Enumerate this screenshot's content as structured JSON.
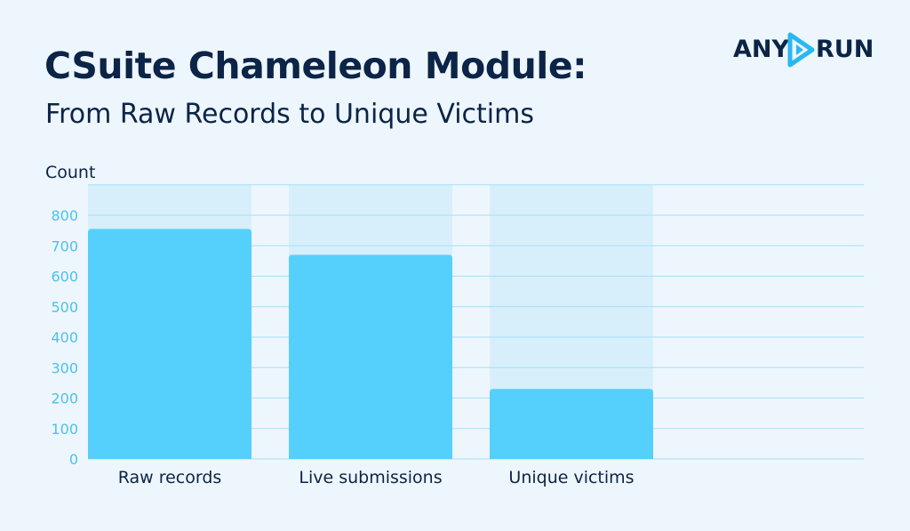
{
  "header": {
    "title": "CSuite Chameleon Module:",
    "subtitle": "From Raw Records to Unique Victims"
  },
  "logo": {
    "left_text": "ANY",
    "right_text": "RUN",
    "icon": "play-icon"
  },
  "colors": {
    "bar": "#55d0fc",
    "bar_background": "#d7effb",
    "gridline": "#a6dff7",
    "tick_text": "#4cc1f0",
    "text_dark": "#0b2447",
    "logo_accent": "#29b8f3"
  },
  "chart_data": {
    "type": "bar",
    "categories": [
      "Raw records",
      "Live submissions",
      "Unique victims"
    ],
    "values": [
      755,
      670,
      230
    ],
    "ylabel": "Count",
    "ylim": [
      0,
      900
    ],
    "yticks": [
      0,
      100,
      200,
      300,
      400,
      500,
      600,
      700,
      800
    ],
    "grid": true,
    "legend": "none"
  }
}
